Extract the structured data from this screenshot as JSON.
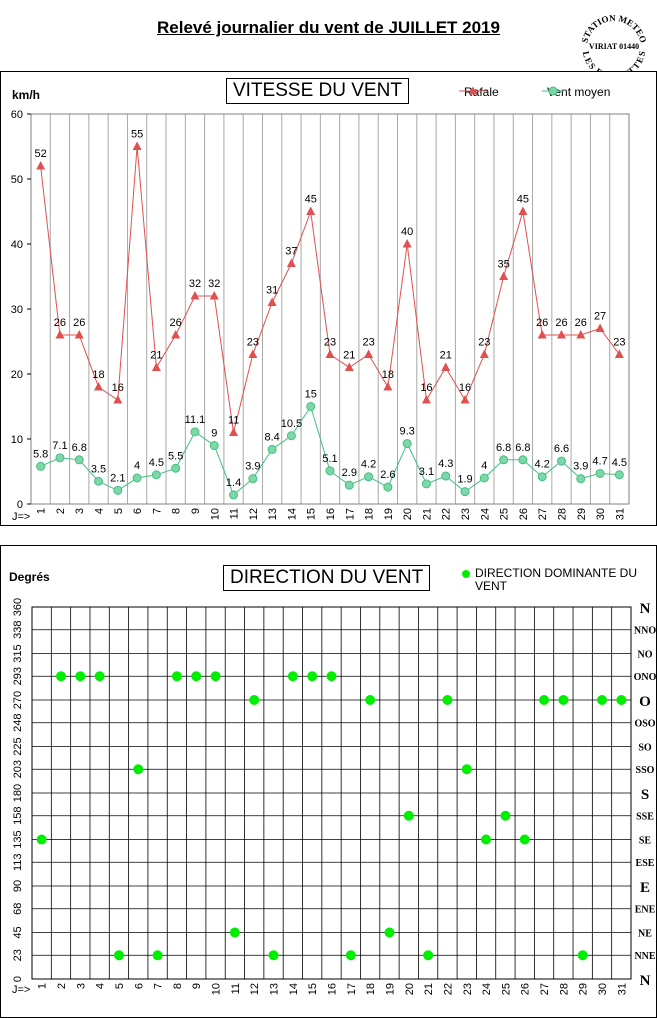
{
  "page": {
    "title": "Relevé journalier du vent de JUILLET 2019",
    "stamp_lines": [
      "STATION METEO",
      "VIRIAT 01440",
      "LES FAUVETTES"
    ]
  },
  "chart_data": [
    {
      "type": "line",
      "title": "VITESSE DU VENT",
      "ylabel": "km/h",
      "x_prefix": "J=>",
      "categories": [
        1,
        2,
        3,
        4,
        5,
        6,
        7,
        8,
        9,
        10,
        11,
        12,
        13,
        14,
        15,
        16,
        17,
        18,
        19,
        20,
        21,
        22,
        23,
        24,
        25,
        26,
        27,
        28,
        29,
        30,
        31
      ],
      "ylim": [
        0,
        60
      ],
      "yticks": [
        0,
        10,
        20,
        30,
        40,
        50,
        60
      ],
      "grid": "vertical",
      "legend": "top-right",
      "series": [
        {
          "name": "Rafale",
          "color": "#e05050",
          "marker": "triangle",
          "values": [
            52,
            26,
            26,
            18,
            16,
            55,
            21,
            26,
            32,
            32,
            11,
            23,
            31,
            37,
            45,
            23,
            21,
            23,
            18,
            40,
            16,
            21,
            16,
            23,
            35,
            45,
            26,
            26,
            26,
            27,
            23
          ]
        },
        {
          "name": "Vent moyen",
          "color": "#40c080",
          "marker": "circle",
          "values": [
            5.8,
            7.1,
            6.8,
            3.5,
            2.1,
            4,
            4.5,
            5.5,
            11.1,
            9,
            1.4,
            3.9,
            8.4,
            10.5,
            15,
            5.1,
            2.9,
            4.2,
            2.6,
            9.3,
            3.1,
            4.3,
            1.9,
            4,
            6.8,
            6.8,
            4.2,
            6.6,
            3.9,
            4.7,
            4.5
          ]
        }
      ]
    },
    {
      "type": "scatter",
      "title": "DIRECTION DU VENT",
      "ylabel": "Degrés",
      "x_prefix": "J=>",
      "categories": [
        1,
        2,
        3,
        4,
        5,
        6,
        7,
        8,
        9,
        10,
        11,
        12,
        13,
        14,
        15,
        16,
        17,
        18,
        19,
        20,
        21,
        22,
        23,
        24,
        25,
        26,
        27,
        28,
        29,
        30,
        31
      ],
      "ylim": [
        0,
        360
      ],
      "yticks": [
        0,
        23,
        45,
        68,
        90,
        113,
        135,
        158,
        180,
        203,
        225,
        248,
        270,
        293,
        315,
        338,
        360
      ],
      "right_labels": [
        "N",
        "NNE",
        "NE",
        "ENE",
        "E",
        "ESE",
        "SE",
        "SSE",
        "S",
        "SSO",
        "SO",
        "OSO",
        "O",
        "ONO",
        "NO",
        "NNO",
        "N"
      ],
      "grid": "both",
      "legend": "top-right",
      "series": [
        {
          "name": "DIRECTION DOMINANTE DU VENT",
          "color": "#00ee00",
          "marker": "circle",
          "values": [
            135,
            293,
            293,
            293,
            23,
            203,
            23,
            293,
            293,
            293,
            45,
            270,
            23,
            293,
            293,
            293,
            23,
            270,
            45,
            158,
            23,
            270,
            203,
            135,
            158,
            135,
            270,
            270,
            23,
            270,
            270
          ]
        }
      ]
    }
  ]
}
